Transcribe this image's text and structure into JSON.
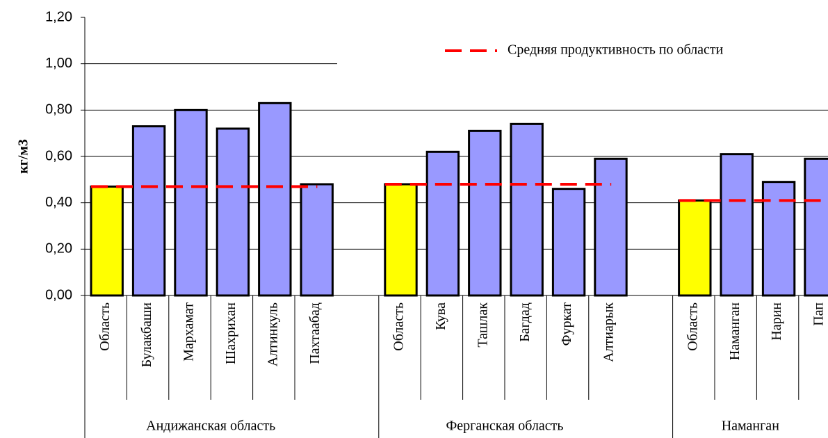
{
  "chart_data": {
    "type": "bar",
    "y_label": "кг/м3",
    "ylim": [
      0,
      1.2
    ],
    "yticks": [
      {
        "value": 0,
        "label": "0,00"
      },
      {
        "value": 0.2,
        "label": "0,20"
      },
      {
        "value": 0.4,
        "label": "0,40"
      },
      {
        "value": 0.6,
        "label": "0,60"
      },
      {
        "value": 0.8,
        "label": "0,80"
      },
      {
        "value": 1.0,
        "label": "1,00"
      },
      {
        "value": 1.2,
        "label": "1,20"
      }
    ],
    "grid": true,
    "region_color": "#ffff00",
    "color": "#9999ff",
    "average_color": "#ff0000",
    "legend": "Средняя продуктивность по области",
    "groups": [
      {
        "name": "Андижанская область",
        "categories": [
          "Область",
          "Булакбаши",
          "Мархамат",
          "Шахрихан",
          "Алтинкуль",
          "Пахтаабад"
        ],
        "values": [
          0.47,
          0.73,
          0.8,
          0.72,
          0.83,
          0.48
        ],
        "average": 0.47
      },
      {
        "name": "Ферганская область",
        "categories": [
          "Область",
          "Кува",
          "Ташлак",
          "Багдад",
          "Фуркат",
          "Алтиарык"
        ],
        "values": [
          0.48,
          0.62,
          0.71,
          0.74,
          0.46,
          0.59
        ],
        "average": 0.48
      },
      {
        "name": "Наманган",
        "categories": [
          "Область",
          "Наманган",
          "Нарин",
          "Пап"
        ],
        "values": [
          0.41,
          0.61,
          0.49,
          0.59
        ],
        "average": 0.41
      }
    ]
  }
}
